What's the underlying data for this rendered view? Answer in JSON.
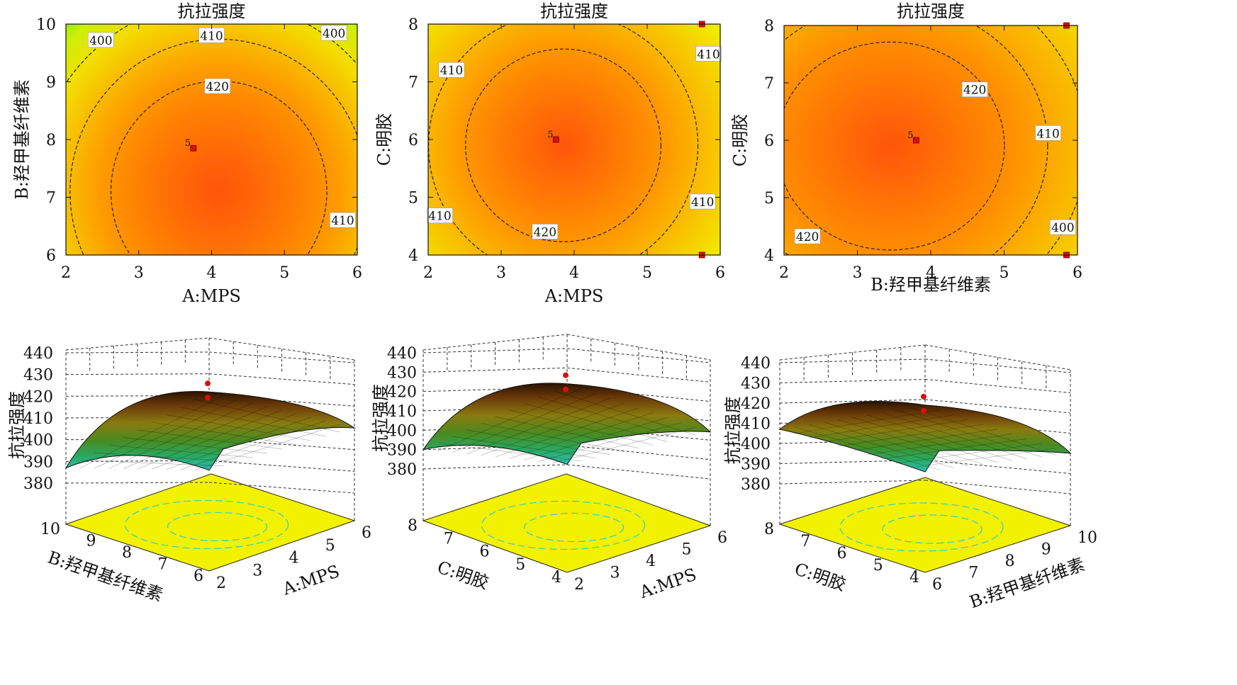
{
  "chart_data": [
    {
      "type": "heatmap",
      "subtype": "contour",
      "title": "抗拉强度",
      "xlabel": "A:MPS",
      "ylabel": "B:羟甲基纤维素",
      "xticks": [
        "2",
        "3",
        "4",
        "5",
        "6"
      ],
      "yticks": [
        "6",
        "7",
        "8",
        "9",
        "10"
      ],
      "xlim": [
        2,
        6
      ],
      "ylim": [
        6,
        10
      ],
      "center": [
        4.1,
        7.1
      ],
      "contours": [
        {
          "level": 400,
          "label": "400"
        },
        {
          "level": 410,
          "label": "410"
        },
        {
          "level": 420,
          "label": "420"
        }
      ],
      "design_points": [
        {
          "x": 3.75,
          "y": 7.85,
          "label": "5"
        }
      ],
      "colormap": "blue-cyan-green-yellow-orange"
    },
    {
      "type": "heatmap",
      "subtype": "contour",
      "title": "抗拉强度",
      "xlabel": "A:MPS",
      "ylabel": "C:明胶",
      "xticks": [
        "2",
        "3",
        "4",
        "5",
        "6"
      ],
      "yticks": [
        "4",
        "5",
        "6",
        "7",
        "8"
      ],
      "xlim": [
        2,
        6
      ],
      "ylim": [
        4,
        8
      ],
      "center": [
        3.85,
        5.9
      ],
      "contours": [
        {
          "level": 410,
          "label": "410"
        },
        {
          "level": 420,
          "label": "420"
        }
      ],
      "design_points": [
        {
          "x": 3.75,
          "y": 6,
          "label": "5"
        },
        {
          "x": 5.75,
          "y": 8,
          "label": ""
        },
        {
          "x": 5.75,
          "y": 4,
          "label": ""
        }
      ],
      "colormap": "blue-cyan-green-yellow-orange"
    },
    {
      "type": "heatmap",
      "subtype": "contour",
      "title": "抗拉强度",
      "xlabel": "B:羟甲基纤维素",
      "ylabel": "C:明胶",
      "xticks": [
        "2",
        "3",
        "4",
        "5",
        "6"
      ],
      "yticks": [
        "4",
        "5",
        "6",
        "7",
        "8"
      ],
      "xlim": [
        2,
        6
      ],
      "ylim": [
        4,
        8
      ],
      "center": [
        3.45,
        5.9
      ],
      "contours": [
        {
          "level": 400,
          "label": "400"
        },
        {
          "level": 410,
          "label": "410"
        },
        {
          "level": 420,
          "label": "420"
        }
      ],
      "design_points": [
        {
          "x": 3.8,
          "y": 6,
          "label": "5"
        },
        {
          "x": 5.85,
          "y": 8,
          "label": ""
        },
        {
          "x": 5.85,
          "y": 4,
          "label": ""
        }
      ],
      "colormap": "blue-cyan-green-yellow-orange"
    },
    {
      "type": "surface",
      "zlabel": "抗拉强度",
      "zticks": [
        "380",
        "390",
        "400",
        "410",
        "420",
        "430",
        "440"
      ],
      "zlim": [
        380,
        440
      ],
      "left_axis": {
        "label": "B:羟甲基纤维素",
        "ticks": [
          "10",
          "9",
          "8",
          "7",
          "6"
        ]
      },
      "right_axis": {
        "label": "A:MPS",
        "ticks": [
          "2",
          "3",
          "4",
          "5",
          "6"
        ]
      },
      "surface": {
        "left_end": 387,
        "back": 412,
        "front": 399,
        "right_end": 408,
        "peak": 422
      }
    },
    {
      "type": "surface",
      "zlabel": "抗拉强度",
      "zticks": [
        "380",
        "390",
        "400",
        "410",
        "420",
        "430",
        "440"
      ],
      "zlim": [
        380,
        440
      ],
      "left_axis": {
        "label": "C:明胶",
        "ticks": [
          "8",
          "7",
          "6",
          "5",
          "4"
        ]
      },
      "right_axis": {
        "label": "A:MPS",
        "ticks": [
          "2",
          "3",
          "4",
          "5",
          "6"
        ]
      },
      "surface": {
        "left_end": 390,
        "back": 413,
        "front": 397,
        "right_end": 402,
        "peak": 424
      }
    },
    {
      "type": "surface",
      "zlabel": "抗拉强度",
      "zticks": [
        "380",
        "390",
        "400",
        "410",
        "420",
        "430",
        "440"
      ],
      "zlim": [
        380,
        440
      ],
      "left_axis": {
        "label": "C:明胶",
        "ticks": [
          "8",
          "7",
          "6",
          "5",
          "4"
        ]
      },
      "right_axis": {
        "label": "B:羟甲基纤维素",
        "ticks": [
          "6",
          "7",
          "8",
          "9",
          "10"
        ]
      },
      "surface": {
        "left_end": 407,
        "back": 412,
        "front": 400,
        "right_end": 398,
        "peak": 419
      }
    }
  ]
}
